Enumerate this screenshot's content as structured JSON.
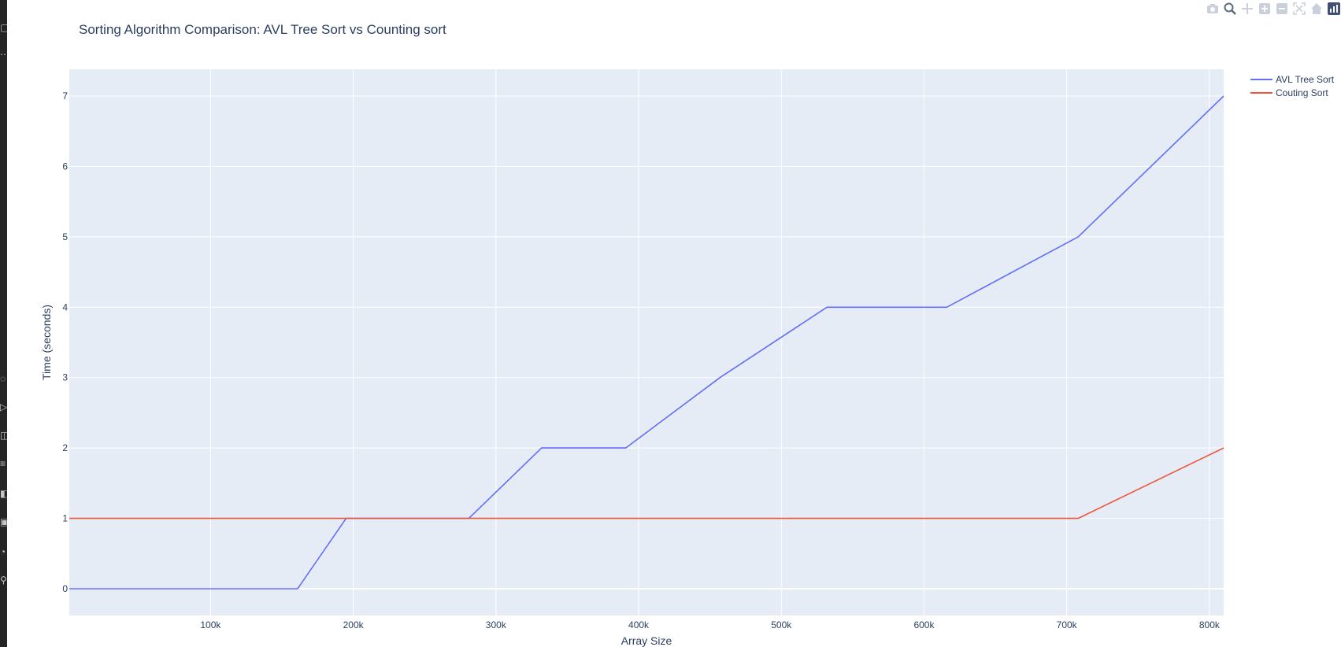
{
  "modebar": {
    "icons": [
      "camera-icon",
      "zoom-icon",
      "pan-icon",
      "zoom-in-icon",
      "zoom-out-icon",
      "autoscale-icon",
      "reset-axes-icon",
      "plotly-logo-icon"
    ]
  },
  "colors": {
    "plot_bg": "#e5ecf6",
    "grid": "#ffffff",
    "text": "#2a3f5f",
    "avl": "#636efa",
    "counting": "#ef553b"
  },
  "chart_data": {
    "type": "line",
    "title": "Sorting Algorithm Comparison: AVL Tree Sort vs Counting sort",
    "xlabel": "Array Size",
    "ylabel": "Time (seconds)",
    "xlim": [
      1000,
      810000
    ],
    "ylim": [
      -0.38,
      7.38
    ],
    "x_ticks": [
      100000,
      200000,
      300000,
      400000,
      500000,
      600000,
      700000,
      800000
    ],
    "x_tick_labels": [
      "100k",
      "200k",
      "300k",
      "400k",
      "500k",
      "600k",
      "700k",
      "800k"
    ],
    "y_ticks": [
      0,
      1,
      2,
      3,
      4,
      5,
      6,
      7
    ],
    "y_tick_labels": [
      "0",
      "1",
      "2",
      "3",
      "4",
      "5",
      "6",
      "7"
    ],
    "grid": true,
    "legend_position": "top-right",
    "series": [
      {
        "name": "AVL Tree Sort",
        "color": "#636efa",
        "x": [
          1000,
          161000,
          195000,
          281000,
          332000,
          391000,
          457000,
          532000,
          616000,
          708000,
          810000
        ],
        "y": [
          0,
          0,
          1,
          1,
          2,
          2,
          3,
          4,
          4,
          5,
          7
        ]
      },
      {
        "name": "Couting Sort",
        "color": "#ef553b",
        "x": [
          1000,
          708000,
          810000
        ],
        "y": [
          1,
          1,
          2
        ]
      }
    ]
  }
}
